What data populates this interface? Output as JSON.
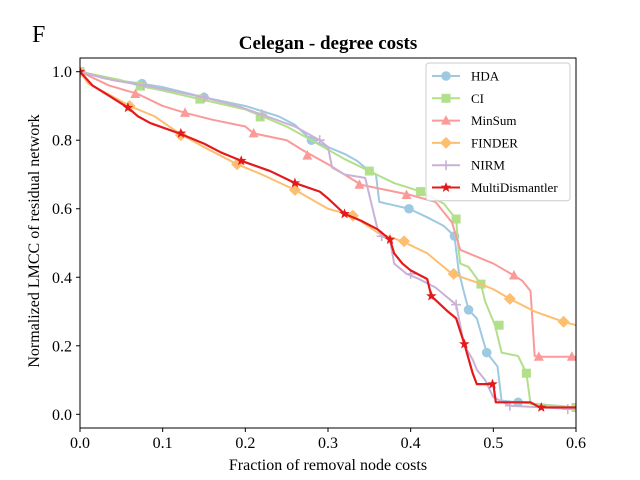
{
  "panel_label": "F",
  "chart_data": {
    "type": "line",
    "title": "Celegan - degree costs",
    "xlabel": "Fraction of removal node costs",
    "ylabel": "Normalized LMCC of residual network",
    "xlim": [
      0,
      0.6
    ],
    "ylim": [
      -0.04,
      1.04
    ],
    "xticks": [
      "0.0",
      "0.1",
      "0.2",
      "0.3",
      "0.4",
      "0.5",
      "0.6"
    ],
    "xtick_values": [
      0,
      0.1,
      0.2,
      0.3,
      0.4,
      0.5,
      0.6
    ],
    "yticks": [
      "0.0",
      "0.2",
      "0.4",
      "0.6",
      "0.8",
      "1.0"
    ],
    "ytick_values": [
      0,
      0.2,
      0.4,
      0.6,
      0.8,
      1.0
    ],
    "grid": false,
    "legend_position": "top-right",
    "series": [
      {
        "name": "HDA",
        "color": "#9ecae1",
        "marker": "circle",
        "points": [
          [
            0,
            1.0
          ],
          [
            0.03,
            0.98
          ],
          [
            0.075,
            0.965
          ],
          [
            0.1,
            0.955
          ],
          [
            0.15,
            0.925
          ],
          [
            0.2,
            0.9
          ],
          [
            0.24,
            0.87
          ],
          [
            0.26,
            0.845
          ],
          [
            0.28,
            0.8
          ],
          [
            0.3,
            0.78
          ],
          [
            0.32,
            0.76
          ],
          [
            0.335,
            0.74
          ],
          [
            0.345,
            0.72
          ],
          [
            0.358,
            0.7
          ],
          [
            0.362,
            0.62
          ],
          [
            0.38,
            0.61
          ],
          [
            0.398,
            0.6
          ],
          [
            0.42,
            0.575
          ],
          [
            0.44,
            0.55
          ],
          [
            0.453,
            0.52
          ],
          [
            0.458,
            0.42
          ],
          [
            0.463,
            0.37
          ],
          [
            0.47,
            0.305
          ],
          [
            0.48,
            0.28
          ],
          [
            0.492,
            0.18
          ],
          [
            0.505,
            0.14
          ],
          [
            0.51,
            0.04
          ],
          [
            0.53,
            0.035
          ],
          [
            0.6,
            0.02
          ]
        ],
        "markers": [
          [
            0,
            1.0
          ],
          [
            0.075,
            0.965
          ],
          [
            0.15,
            0.925
          ],
          [
            0.28,
            0.8
          ],
          [
            0.398,
            0.6
          ],
          [
            0.453,
            0.52
          ],
          [
            0.47,
            0.305
          ],
          [
            0.492,
            0.18
          ],
          [
            0.53,
            0.035
          ],
          [
            0.6,
            0.02
          ]
        ]
      },
      {
        "name": "CI",
        "color": "#b2df8a",
        "marker": "square",
        "points": [
          [
            0,
            1.0
          ],
          [
            0.02,
            0.99
          ],
          [
            0.05,
            0.975
          ],
          [
            0.073,
            0.958
          ],
          [
            0.1,
            0.945
          ],
          [
            0.145,
            0.92
          ],
          [
            0.2,
            0.89
          ],
          [
            0.22,
            0.87
          ],
          [
            0.25,
            0.84
          ],
          [
            0.28,
            0.8
          ],
          [
            0.32,
            0.745
          ],
          [
            0.35,
            0.71
          ],
          [
            0.38,
            0.675
          ],
          [
            0.412,
            0.65
          ],
          [
            0.44,
            0.615
          ],
          [
            0.455,
            0.57
          ],
          [
            0.458,
            0.48
          ],
          [
            0.46,
            0.44
          ],
          [
            0.47,
            0.43
          ],
          [
            0.485,
            0.38
          ],
          [
            0.49,
            0.33
          ],
          [
            0.502,
            0.26
          ],
          [
            0.51,
            0.18
          ],
          [
            0.53,
            0.17
          ],
          [
            0.54,
            0.12
          ],
          [
            0.545,
            0.03
          ],
          [
            0.6,
            0.02
          ]
        ],
        "markers": [
          [
            0,
            1.0
          ],
          [
            0.073,
            0.958
          ],
          [
            0.145,
            0.92
          ],
          [
            0.218,
            0.868
          ],
          [
            0.35,
            0.71
          ],
          [
            0.412,
            0.65
          ],
          [
            0.455,
            0.57
          ],
          [
            0.485,
            0.38
          ],
          [
            0.507,
            0.26
          ],
          [
            0.54,
            0.12
          ],
          [
            0.6,
            0.02
          ]
        ]
      },
      {
        "name": "MinSum",
        "color": "#fb9a99",
        "marker": "triangle",
        "points": [
          [
            0,
            1.0
          ],
          [
            0.035,
            0.96
          ],
          [
            0.07,
            0.935
          ],
          [
            0.1,
            0.9
          ],
          [
            0.127,
            0.88
          ],
          [
            0.16,
            0.86
          ],
          [
            0.2,
            0.84
          ],
          [
            0.21,
            0.82
          ],
          [
            0.25,
            0.8
          ],
          [
            0.27,
            0.77
          ],
          [
            0.3,
            0.73
          ],
          [
            0.32,
            0.7
          ],
          [
            0.34,
            0.67
          ],
          [
            0.37,
            0.655
          ],
          [
            0.4,
            0.64
          ],
          [
            0.43,
            0.62
          ],
          [
            0.45,
            0.56
          ],
          [
            0.46,
            0.48
          ],
          [
            0.48,
            0.46
          ],
          [
            0.5,
            0.44
          ],
          [
            0.525,
            0.405
          ],
          [
            0.535,
            0.39
          ],
          [
            0.545,
            0.36
          ],
          [
            0.55,
            0.17
          ],
          [
            0.56,
            0.168
          ],
          [
            0.6,
            0.168
          ]
        ],
        "markers": [
          [
            0,
            1.0
          ],
          [
            0.067,
            0.935
          ],
          [
            0.127,
            0.88
          ],
          [
            0.21,
            0.82
          ],
          [
            0.275,
            0.755
          ],
          [
            0.338,
            0.67
          ],
          [
            0.395,
            0.64
          ],
          [
            0.525,
            0.405
          ],
          [
            0.555,
            0.168
          ],
          [
            0.595,
            0.168
          ]
        ]
      },
      {
        "name": "FINDER",
        "color": "#fdbf6f",
        "marker": "diamond",
        "points": [
          [
            0,
            1.0
          ],
          [
            0.01,
            0.965
          ],
          [
            0.03,
            0.94
          ],
          [
            0.06,
            0.9
          ],
          [
            0.09,
            0.87
          ],
          [
            0.12,
            0.82
          ],
          [
            0.15,
            0.78
          ],
          [
            0.19,
            0.73
          ],
          [
            0.22,
            0.7
          ],
          [
            0.26,
            0.655
          ],
          [
            0.3,
            0.6
          ],
          [
            0.33,
            0.58
          ],
          [
            0.36,
            0.53
          ],
          [
            0.39,
            0.505
          ],
          [
            0.42,
            0.47
          ],
          [
            0.45,
            0.41
          ],
          [
            0.48,
            0.385
          ],
          [
            0.5,
            0.365
          ],
          [
            0.52,
            0.337
          ],
          [
            0.55,
            0.3
          ],
          [
            0.585,
            0.27
          ],
          [
            0.6,
            0.26
          ]
        ],
        "markers": [
          [
            0,
            1.0
          ],
          [
            0.06,
            0.9
          ],
          [
            0.122,
            0.815
          ],
          [
            0.19,
            0.73
          ],
          [
            0.26,
            0.655
          ],
          [
            0.33,
            0.58
          ],
          [
            0.392,
            0.505
          ],
          [
            0.452,
            0.41
          ],
          [
            0.52,
            0.337
          ],
          [
            0.585,
            0.27
          ]
        ]
      },
      {
        "name": "NIRM",
        "color": "#cab2d6",
        "marker": "plus",
        "points": [
          [
            0,
            1.0
          ],
          [
            0.04,
            0.975
          ],
          [
            0.077,
            0.96
          ],
          [
            0.11,
            0.945
          ],
          [
            0.15,
            0.925
          ],
          [
            0.19,
            0.9
          ],
          [
            0.22,
            0.875
          ],
          [
            0.26,
            0.84
          ],
          [
            0.29,
            0.8
          ],
          [
            0.3,
            0.78
          ],
          [
            0.305,
            0.72
          ],
          [
            0.32,
            0.7
          ],
          [
            0.345,
            0.69
          ],
          [
            0.35,
            0.64
          ],
          [
            0.36,
            0.54
          ],
          [
            0.365,
            0.52
          ],
          [
            0.375,
            0.51
          ],
          [
            0.38,
            0.44
          ],
          [
            0.395,
            0.41
          ],
          [
            0.41,
            0.395
          ],
          [
            0.43,
            0.37
          ],
          [
            0.445,
            0.34
          ],
          [
            0.455,
            0.32
          ],
          [
            0.465,
            0.2
          ],
          [
            0.475,
            0.16
          ],
          [
            0.48,
            0.13
          ],
          [
            0.49,
            0.1
          ],
          [
            0.5,
            0.05
          ],
          [
            0.52,
            0.025
          ],
          [
            0.6,
            0.015
          ]
        ],
        "markers": [
          [
            0,
            1.0
          ],
          [
            0.077,
            0.96
          ],
          [
            0.15,
            0.925
          ],
          [
            0.22,
            0.875
          ],
          [
            0.29,
            0.8
          ],
          [
            0.365,
            0.52
          ],
          [
            0.4,
            0.41
          ],
          [
            0.455,
            0.32
          ],
          [
            0.52,
            0.025
          ],
          [
            0.59,
            0.015
          ]
        ]
      },
      {
        "name": "MultiDismantler",
        "color": "#e31a1c",
        "marker": "star",
        "points": [
          [
            0,
            1.0
          ],
          [
            0.015,
            0.96
          ],
          [
            0.035,
            0.93
          ],
          [
            0.058,
            0.895
          ],
          [
            0.07,
            0.87
          ],
          [
            0.085,
            0.85
          ],
          [
            0.12,
            0.82
          ],
          [
            0.15,
            0.79
          ],
          [
            0.17,
            0.765
          ],
          [
            0.195,
            0.74
          ],
          [
            0.23,
            0.71
          ],
          [
            0.26,
            0.675
          ],
          [
            0.29,
            0.65
          ],
          [
            0.3,
            0.63
          ],
          [
            0.32,
            0.585
          ],
          [
            0.34,
            0.565
          ],
          [
            0.36,
            0.54
          ],
          [
            0.375,
            0.51
          ],
          [
            0.38,
            0.47
          ],
          [
            0.39,
            0.44
          ],
          [
            0.4,
            0.42
          ],
          [
            0.42,
            0.395
          ],
          [
            0.425,
            0.345
          ],
          [
            0.445,
            0.3
          ],
          [
            0.455,
            0.28
          ],
          [
            0.465,
            0.205
          ],
          [
            0.475,
            0.12
          ],
          [
            0.48,
            0.088
          ],
          [
            0.5,
            0.088
          ],
          [
            0.503,
            0.035
          ],
          [
            0.52,
            0.035
          ],
          [
            0.545,
            0.035
          ],
          [
            0.556,
            0.02
          ],
          [
            0.6,
            0.02
          ]
        ],
        "markers": [
          [
            0,
            1.0
          ],
          [
            0.058,
            0.895
          ],
          [
            0.122,
            0.82
          ],
          [
            0.195,
            0.74
          ],
          [
            0.26,
            0.675
          ],
          [
            0.32,
            0.585
          ],
          [
            0.375,
            0.51
          ],
          [
            0.425,
            0.345
          ],
          [
            0.465,
            0.205
          ],
          [
            0.499,
            0.088
          ],
          [
            0.558,
            0.02
          ]
        ]
      }
    ]
  }
}
